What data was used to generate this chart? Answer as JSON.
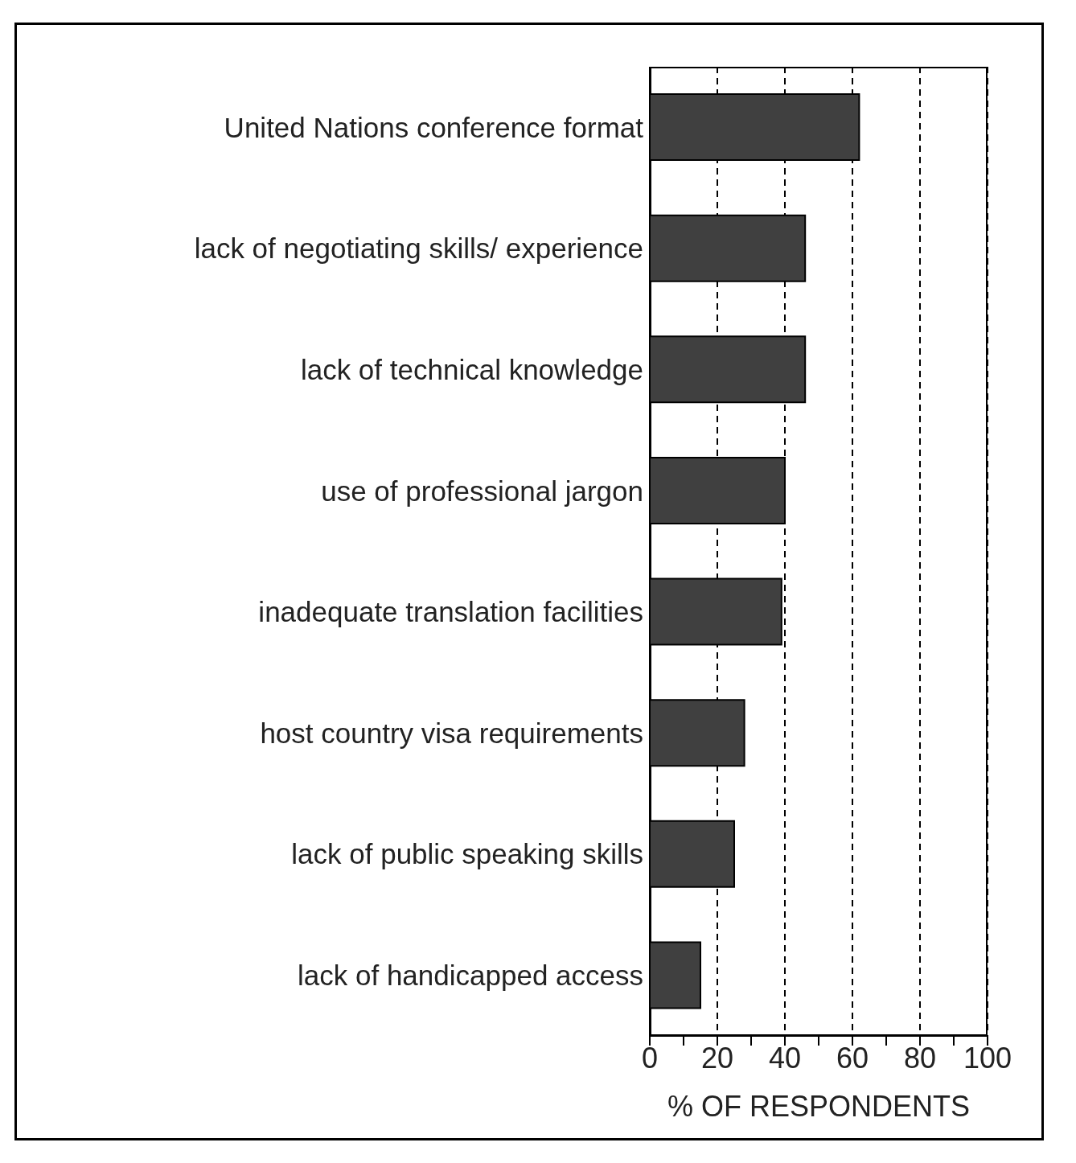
{
  "chart_data": {
    "type": "bar",
    "orientation": "horizontal",
    "categories": [
      "United Nations conference format",
      "lack of negotiating skills/ experience",
      "lack of technical knowledge",
      "use of professional jargon",
      "inadequate translation facilities",
      "host country visa requirements",
      "lack of public speaking skills",
      "lack of handicapped access"
    ],
    "values": [
      62,
      46,
      46,
      40,
      39,
      28,
      25,
      15
    ],
    "color": "#404040",
    "xlabel": "% OF RESPONDENTS",
    "xlim": [
      0,
      100
    ],
    "xticks": [
      0,
      {
        "value": 10,
        "label": null
      },
      20,
      {
        "value": 30,
        "label": null
      },
      40,
      {
        "value": 50,
        "label": null
      },
      60,
      {
        "value": 70,
        "label": null
      },
      80,
      {
        "value": 90,
        "label": null
      },
      100
    ],
    "grid": "x",
    "legend": false
  }
}
